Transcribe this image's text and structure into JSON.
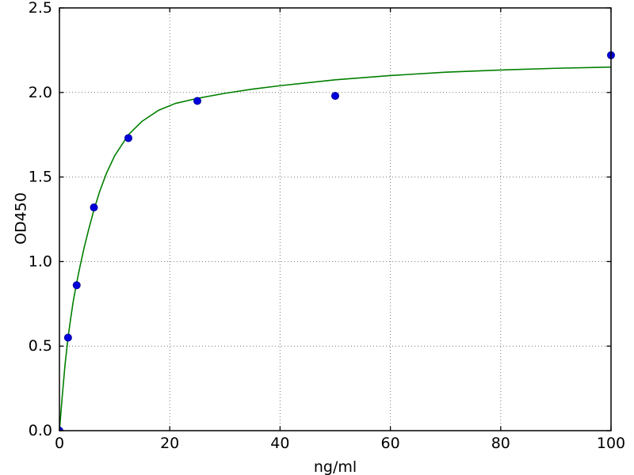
{
  "chart_data": {
    "type": "scatter",
    "title": "",
    "xlabel": "ng/ml",
    "ylabel": "OD450",
    "xlim": [
      0,
      100
    ],
    "ylim": [
      0,
      2.5
    ],
    "x_ticks": [
      0,
      20,
      40,
      60,
      80,
      100
    ],
    "x_tick_labels": [
      "0",
      "20",
      "40",
      "60",
      "80",
      "100"
    ],
    "y_ticks": [
      0,
      0.5,
      1,
      1.5,
      2,
      2.5
    ],
    "y_tick_labels": [
      "0.0",
      "0.5",
      "1.0",
      "1.5",
      "2.0",
      "2.5"
    ],
    "grid": "dotted",
    "legend": "none",
    "colors": {
      "background": "#ffffff",
      "frame": "#000000",
      "grid": "#777777",
      "text": "#000000",
      "marker": "#0000dd",
      "marker_edge": "#0000a0",
      "curve": "#007f00"
    },
    "series": [
      {
        "name": "standard-points",
        "type": "scatter",
        "marker": "circle",
        "points": [
          [
            0,
            0.0
          ],
          [
            1.56,
            0.55
          ],
          [
            3.125,
            0.86
          ],
          [
            6.25,
            1.32
          ],
          [
            12.5,
            1.73
          ],
          [
            25,
            1.95
          ],
          [
            50,
            1.98
          ],
          [
            100,
            2.22
          ]
        ]
      },
      {
        "name": "fit-curve",
        "type": "line",
        "points": [
          [
            0,
            0.0
          ],
          [
            0.5,
            0.2
          ],
          [
            1,
            0.385
          ],
          [
            1.56,
            0.55
          ],
          [
            2,
            0.655
          ],
          [
            2.5,
            0.765
          ],
          [
            3.125,
            0.875
          ],
          [
            3.75,
            0.975
          ],
          [
            4.5,
            1.085
          ],
          [
            5.3,
            1.19
          ],
          [
            6.25,
            1.305
          ],
          [
            7.3,
            1.415
          ],
          [
            8.5,
            1.52
          ],
          [
            10,
            1.625
          ],
          [
            12.5,
            1.75
          ],
          [
            15,
            1.83
          ],
          [
            18,
            1.895
          ],
          [
            21,
            1.935
          ],
          [
            25,
            1.965
          ],
          [
            30,
            1.995
          ],
          [
            35,
            2.02
          ],
          [
            40,
            2.04
          ],
          [
            50,
            2.075
          ],
          [
            60,
            2.1
          ],
          [
            70,
            2.12
          ],
          [
            80,
            2.133
          ],
          [
            90,
            2.143
          ],
          [
            100,
            2.15
          ]
        ]
      }
    ]
  }
}
